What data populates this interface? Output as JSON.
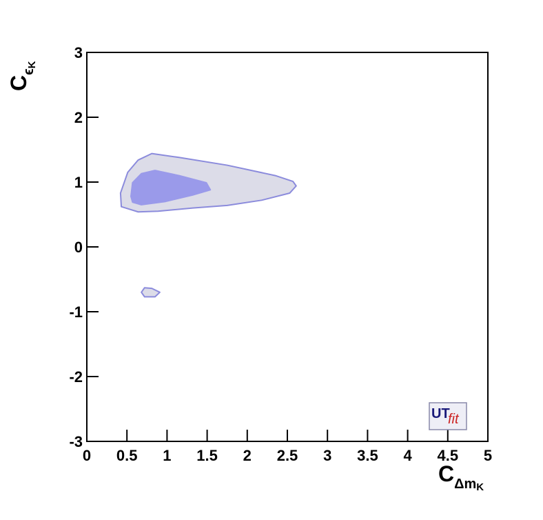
{
  "chart_data": {
    "type": "contour",
    "xlabel": {
      "main": "C",
      "sub": "Δm",
      "subsub": "K"
    },
    "ylabel": {
      "main": "C",
      "sub": "ϵ",
      "subsub": "K"
    },
    "xlim": [
      0,
      5
    ],
    "ylim": [
      -3,
      3
    ],
    "xticks": [
      0,
      0.5,
      1,
      1.5,
      2,
      2.5,
      3,
      3.5,
      4,
      4.5,
      5
    ],
    "yticks": [
      -3,
      -2,
      -1,
      0,
      1,
      2,
      3
    ],
    "contours": [
      {
        "color": "#dcdce8",
        "edge": "#8b8bdc",
        "x": [
          0.43,
          0.42,
          0.51,
          0.64,
          0.81,
          1.15,
          1.75,
          2.35,
          2.57,
          2.61,
          2.53,
          2.18,
          1.75,
          1.32,
          0.89,
          0.64,
          0.51
        ],
        "y": [
          0.62,
          0.83,
          1.15,
          1.34,
          1.44,
          1.38,
          1.26,
          1.1,
          1.01,
          0.94,
          0.83,
          0.72,
          0.64,
          0.6,
          0.55,
          0.54,
          0.59
        ]
      },
      {
        "color": "#9a9aea",
        "edge": "#9a9aea",
        "x": [
          0.55,
          0.57,
          0.68,
          0.85,
          1.15,
          1.49,
          1.54,
          1.32,
          0.98,
          0.68,
          0.57
        ],
        "y": [
          0.78,
          0.99,
          1.13,
          1.18,
          1.1,
          0.99,
          0.88,
          0.8,
          0.7,
          0.65,
          0.69
        ]
      },
      {
        "color": "#dcdce8",
        "edge": "#8b8bdc",
        "x": [
          0.68,
          0.72,
          0.81,
          0.91,
          0.85,
          0.72
        ],
        "y": [
          -0.7,
          -0.63,
          -0.64,
          -0.7,
          -0.77,
          -0.77
        ]
      }
    ],
    "logo": [
      "UT",
      "fit"
    ]
  }
}
